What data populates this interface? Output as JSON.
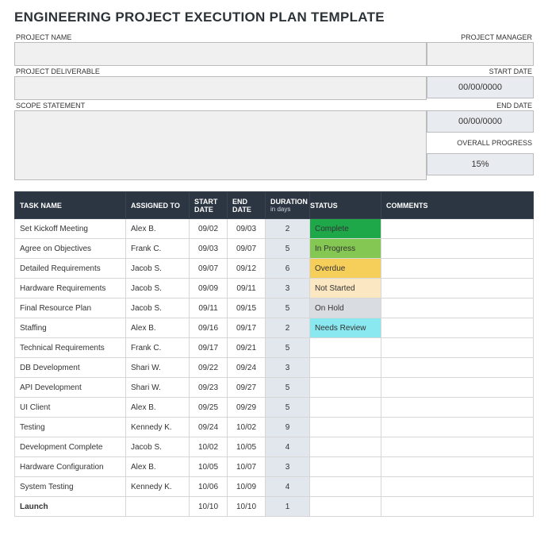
{
  "title": "ENGINEERING PROJECT EXECUTION PLAN TEMPLATE",
  "labels": {
    "projectName": "PROJECT NAME",
    "projectManager": "PROJECT MANAGER",
    "projectDeliverable": "PROJECT DELIVERABLE",
    "startDate": "START DATE",
    "scopeStatement": "SCOPE STATEMENT",
    "endDate": "END DATE",
    "overallProgress": "OVERALL PROGRESS"
  },
  "header": {
    "projectName": "",
    "projectManager": "",
    "projectDeliverable": "",
    "startDate": "00/00/0000",
    "scopeStatement": "",
    "endDate": "00/00/0000",
    "overallProgress": "15%"
  },
  "table": {
    "columns": {
      "task": "TASK NAME",
      "assigned": "ASSIGNED TO",
      "start": "START DATE",
      "end": "END DATE",
      "duration": "DURATION",
      "durationSub": "in days",
      "status": "STATUS",
      "comments": "COMMENTS"
    },
    "rows": [
      {
        "task": "Set Kickoff Meeting",
        "assigned": "Alex B.",
        "start": "09/02",
        "end": "09/03",
        "duration": "2",
        "status": "Complete",
        "statusColor": "#1fa84a",
        "comments": ""
      },
      {
        "task": "Agree on Objectives",
        "assigned": "Frank C.",
        "start": "09/03",
        "end": "09/07",
        "duration": "5",
        "status": "In Progress",
        "statusColor": "#84c752",
        "comments": ""
      },
      {
        "task": "Detailed Requirements",
        "assigned": "Jacob S.",
        "start": "09/07",
        "end": "09/12",
        "duration": "6",
        "status": "Overdue",
        "statusColor": "#f6cf5b",
        "comments": ""
      },
      {
        "task": "Hardware Requirements",
        "assigned": "Jacob S.",
        "start": "09/09",
        "end": "09/11",
        "duration": "3",
        "status": "Not Started",
        "statusColor": "#fbe7c2",
        "comments": ""
      },
      {
        "task": "Final Resource Plan",
        "assigned": "Jacob S.",
        "start": "09/11",
        "end": "09/15",
        "duration": "5",
        "status": "On Hold",
        "statusColor": "#d9dde2",
        "comments": ""
      },
      {
        "task": "Staffing",
        "assigned": "Alex B.",
        "start": "09/16",
        "end": "09/17",
        "duration": "2",
        "status": "Needs Review",
        "statusColor": "#8ae8f0",
        "comments": ""
      },
      {
        "task": "Technical Requirements",
        "assigned": "Frank C.",
        "start": "09/17",
        "end": "09/21",
        "duration": "5",
        "status": "",
        "statusColor": "",
        "comments": ""
      },
      {
        "task": "DB Development",
        "assigned": "Shari W.",
        "start": "09/22",
        "end": "09/24",
        "duration": "3",
        "status": "",
        "statusColor": "",
        "comments": ""
      },
      {
        "task": "API Development",
        "assigned": "Shari W.",
        "start": "09/23",
        "end": "09/27",
        "duration": "5",
        "status": "",
        "statusColor": "",
        "comments": ""
      },
      {
        "task": "UI Client",
        "assigned": "Alex B.",
        "start": "09/25",
        "end": "09/29",
        "duration": "5",
        "status": "",
        "statusColor": "",
        "comments": ""
      },
      {
        "task": "Testing",
        "assigned": "Kennedy K.",
        "start": "09/24",
        "end": "10/02",
        "duration": "9",
        "status": "",
        "statusColor": "",
        "comments": ""
      },
      {
        "task": "Development Complete",
        "assigned": "Jacob S.",
        "start": "10/02",
        "end": "10/05",
        "duration": "4",
        "status": "",
        "statusColor": "",
        "comments": ""
      },
      {
        "task": "Hardware Configuration",
        "assigned": "Alex B.",
        "start": "10/05",
        "end": "10/07",
        "duration": "3",
        "status": "",
        "statusColor": "",
        "comments": ""
      },
      {
        "task": "System Testing",
        "assigned": "Kennedy K.",
        "start": "10/06",
        "end": "10/09",
        "duration": "4",
        "status": "",
        "statusColor": "",
        "comments": ""
      },
      {
        "task": "Launch",
        "assigned": "",
        "start": "10/10",
        "end": "10/10",
        "duration": "1",
        "status": "",
        "statusColor": "",
        "comments": "",
        "bold": true
      }
    ]
  },
  "style": {
    "headerBg": "#2c3642",
    "durationColBg": "#e2e6ed",
    "boxBg": "#f0f0f0",
    "rightBoxBg": "#e8ebef",
    "borderColor": "#d6d6d6"
  }
}
